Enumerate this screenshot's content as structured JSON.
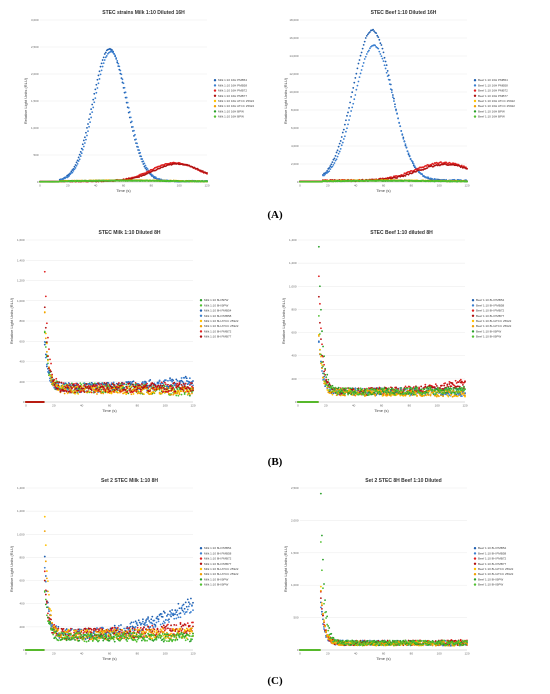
{
  "panel_labels": [
    "(A)",
    "(B)",
    "(C)"
  ],
  "chart_data": [
    {
      "type": "scatter",
      "title": "STEC strains Milk 1:10 Diluted 16H",
      "xlabel": "Time (s)",
      "ylabel": "Relative Light Units (RLU)",
      "xlim": [
        0,
        120
      ],
      "ylim": [
        0,
        3000
      ],
      "xticks": [
        "0",
        "20",
        "40",
        "60",
        "80",
        "100",
        "120"
      ],
      "yticks": [
        "0",
        "500",
        "1,000",
        "1,500",
        "2,000",
        "2,500",
        "3,000"
      ],
      "legend_position": "right",
      "series": [
        {
          "name": "Milk 1:10 16H PMB54",
          "color": "#1f5fb0",
          "peak_x": 50,
          "peak_y": 2450,
          "width": 12,
          "onset": 14,
          "base": 30
        },
        {
          "name": "Milk 1:10 16H PMB58",
          "color": "#3a7fd0",
          "peak_x": 51,
          "peak_y": 2400,
          "width": 12,
          "onset": 14,
          "base": 30
        },
        {
          "name": "Milk 1:10 16H PMB72",
          "color": "#e02020",
          "peak_x": 97,
          "peak_y": 340,
          "width": 17,
          "onset": 14,
          "base": 30
        },
        {
          "name": "Milk 1:10 16H PMB77",
          "color": "#b01010",
          "peak_x": 99,
          "peak_y": 320,
          "width": 17,
          "onset": 14,
          "base": 30
        },
        {
          "name": "Milk 1:10 16H ATCC 25922",
          "color": "#ffc000",
          "peak_x": 60,
          "peak_y": 20,
          "width": 30,
          "onset": 14,
          "base": 20
        },
        {
          "name": "Milk 1:10 16H ATCC 25922",
          "color": "#f0a000",
          "peak_x": 60,
          "peak_y": 20,
          "width": 30,
          "onset": 14,
          "base": 20
        },
        {
          "name": "Milk 1:10 16H BPW",
          "color": "#2aa02a",
          "peak_x": 60,
          "peak_y": 15,
          "width": 30,
          "onset": 14,
          "base": 20
        },
        {
          "name": "Milk 1:10 16H BPW",
          "color": "#50c030",
          "peak_x": 60,
          "peak_y": 15,
          "width": 30,
          "onset": 14,
          "base": 20
        }
      ]
    },
    {
      "type": "scatter",
      "title": "STEC Beef 1:10 Diluted 16H",
      "xlabel": "Time (s)",
      "ylabel": "Relative Light Units (RLU)",
      "xlim": [
        0,
        120
      ],
      "ylim": [
        0,
        18000
      ],
      "xticks": [
        "0",
        "20",
        "40",
        "60",
        "80",
        "100",
        "120"
      ],
      "yticks": [
        "0",
        "2,000",
        "4,000",
        "6,000",
        "8,000",
        "10,000",
        "12,000",
        "14,000",
        "16,000",
        "18,000"
      ],
      "legend_position": "right",
      "series": [
        {
          "name": "Beef 1:10 16H PMB54",
          "color": "#1f5fb0",
          "peak_x": 52,
          "peak_y": 16700,
          "width": 14,
          "onset": 16,
          "base": 300
        },
        {
          "name": "Beef 1:10 16H PMB58",
          "color": "#3a7fd0",
          "peak_x": 53,
          "peak_y": 15000,
          "width": 14,
          "onset": 16,
          "base": 300
        },
        {
          "name": "Beef 1:10 16H PMB72",
          "color": "#e02020",
          "peak_x": 103,
          "peak_y": 2000,
          "width": 20,
          "onset": 16,
          "base": 300
        },
        {
          "name": "Beef 1:10 16H PMB77",
          "color": "#b01010",
          "peak_x": 105,
          "peak_y": 1800,
          "width": 20,
          "onset": 16,
          "base": 300
        },
        {
          "name": "Beef 1:10 16H ATCC 25922",
          "color": "#ffc000",
          "peak_x": 60,
          "peak_y": 100,
          "width": 30,
          "onset": 16,
          "base": 150
        },
        {
          "name": "Beef 1:10 16H ATCC 25922",
          "color": "#f0a000",
          "peak_x": 60,
          "peak_y": 100,
          "width": 30,
          "onset": 16,
          "base": 150
        },
        {
          "name": "Beef 1:10 16H BPW",
          "color": "#2aa02a",
          "peak_x": 60,
          "peak_y": 80,
          "width": 30,
          "onset": 16,
          "base": 120
        },
        {
          "name": "Beef 1:10 16H BPW",
          "color": "#50c030",
          "peak_x": 60,
          "peak_y": 80,
          "width": 30,
          "onset": 16,
          "base": 120
        }
      ]
    },
    {
      "type": "scatter",
      "title": "STEC Milk 1:10 Diluted 8H",
      "xlabel": "Time (s)",
      "ylabel": "Relative Light Units (RLU)",
      "xlim": [
        0,
        120
      ],
      "ylim": [
        0,
        1600
      ],
      "xticks": [
        "0",
        "20",
        "40",
        "60",
        "80",
        "100",
        "120"
      ],
      "yticks": [
        "0",
        "200",
        "400",
        "600",
        "800",
        "1,000",
        "1,200",
        "1,400",
        "1,600"
      ],
      "legend_position": "right",
      "series": [
        {
          "name": "Milk 1:10 8H BPW",
          "color": "#2aa02a",
          "spike": 700,
          "floor": 140,
          "tail": 100,
          "onset": 13
        },
        {
          "name": "Milk 1:10 8H BPW",
          "color": "#50c030",
          "spike": 650,
          "floor": 140,
          "tail": 100,
          "onset": 13
        },
        {
          "name": "Milk 1:10 8H PMB54",
          "color": "#1f5fb0",
          "spike": 550,
          "floor": 140,
          "tail": 220,
          "onset": 13
        },
        {
          "name": "Milk 1:10 8H PMB58",
          "color": "#3a7fd0",
          "spike": 520,
          "floor": 140,
          "tail": 200,
          "onset": 13
        },
        {
          "name": "Milk 1:10 8H ATCC 25922",
          "color": "#ffc000",
          "spike": 960,
          "floor": 120,
          "tail": 110,
          "onset": 13
        },
        {
          "name": "Milk 1:10 8H ATCC 25922",
          "color": "#f0a000",
          "spike": 900,
          "floor": 120,
          "tail": 110,
          "onset": 13
        },
        {
          "name": "Milk 1:10 8H PMB72",
          "color": "#e02020",
          "spike": 1420,
          "floor": 140,
          "tail": 150,
          "onset": 13
        },
        {
          "name": "Milk 1:10 8H PMB77",
          "color": "#b01010",
          "spike": 930,
          "floor": 140,
          "tail": 150,
          "onset": 13
        }
      ]
    },
    {
      "type": "scatter",
      "title": "STEC Beef 1:10 diluted 8H",
      "xlabel": "Time (s)",
      "ylabel": "Relative Light Units (RLU)",
      "xlim": [
        0,
        120
      ],
      "ylim": [
        0,
        1400
      ],
      "xticks": [
        "0",
        "20",
        "40",
        "60",
        "80",
        "100",
        "120"
      ],
      "yticks": [
        "0",
        "200",
        "400",
        "600",
        "800",
        "1,000",
        "1,200",
        "1,400"
      ],
      "legend_position": "right",
      "series": [
        {
          "name": "Beef 1:10 8H PMB54",
          "color": "#1f5fb0",
          "spike": 460,
          "floor": 90,
          "tail": 90,
          "onset": 15
        },
        {
          "name": "Beef 1:10 8H PMB58",
          "color": "#3a7fd0",
          "spike": 420,
          "floor": 90,
          "tail": 80,
          "onset": 15
        },
        {
          "name": "Beef 1:10 8H PMB72",
          "color": "#e02020",
          "spike": 1020,
          "floor": 90,
          "tail": 170,
          "onset": 15
        },
        {
          "name": "Beef 1:10 8H PMB77",
          "color": "#b01010",
          "spike": 810,
          "floor": 90,
          "tail": 150,
          "onset": 15
        },
        {
          "name": "Beef 1:10 8H ATCC 25922",
          "color": "#ffc000",
          "spike": 520,
          "floor": 80,
          "tail": 70,
          "onset": 15
        },
        {
          "name": "Beef 1:10 8H ATCC 25922",
          "color": "#f0a000",
          "spike": 480,
          "floor": 80,
          "tail": 70,
          "onset": 15
        },
        {
          "name": "Beef 1:10 8H BPW",
          "color": "#2aa02a",
          "spike": 1270,
          "floor": 90,
          "tail": 110,
          "onset": 15
        },
        {
          "name": "Beef 1:10 8H BPW",
          "color": "#50c030",
          "spike": 640,
          "floor": 90,
          "tail": 100,
          "onset": 15
        }
      ]
    },
    {
      "type": "scatter",
      "title": "Set 2 STEC Milk 1:10 8H",
      "xlabel": "Time (s)",
      "ylabel": "Relative Light Units (RLU)",
      "xlim": [
        0,
        120
      ],
      "ylim": [
        0,
        1400
      ],
      "xticks": [
        "0",
        "20",
        "40",
        "60",
        "80",
        "100",
        "120"
      ],
      "yticks": [
        "0",
        "200",
        "400",
        "600",
        "800",
        "1,000",
        "1,200",
        "1,400"
      ],
      "legend_position": "right",
      "series": [
        {
          "name": "Milk 1:10 8H PMB54",
          "color": "#1f5fb0",
          "spike": 760,
          "floor": 140,
          "tail": 420,
          "onset": 13
        },
        {
          "name": "Milk 1:10 8H PMB58",
          "color": "#3a7fd0",
          "spike": 700,
          "floor": 140,
          "tail": 380,
          "onset": 13
        },
        {
          "name": "Milk 1:10 8H PMB72",
          "color": "#e02020",
          "spike": 600,
          "floor": 140,
          "tail": 200,
          "onset": 13
        },
        {
          "name": "Milk 1:10 8H PMB77",
          "color": "#b01010",
          "spike": 560,
          "floor": 140,
          "tail": 190,
          "onset": 13
        },
        {
          "name": "Milk 1:10 8H ATCC 25922",
          "color": "#ffc000",
          "spike": 1300,
          "floor": 130,
          "tail": 150,
          "onset": 13
        },
        {
          "name": "Milk 1:10 8H ATCC 25922",
          "color": "#f0a000",
          "spike": 1090,
          "floor": 130,
          "tail": 150,
          "onset": 13
        },
        {
          "name": "Milk 1:10 8H BPW",
          "color": "#2aa02a",
          "spike": 520,
          "floor": 110,
          "tail": 110,
          "onset": 13
        },
        {
          "name": "Milk 1:10 8H BPW",
          "color": "#50c030",
          "spike": 480,
          "floor": 110,
          "tail": 110,
          "onset": 13
        }
      ]
    },
    {
      "type": "scatter",
      "title": "Set 2 STEC 8H Beef 1:10 Diluted",
      "xlabel": "Time (s)",
      "ylabel": "Relative Light Units (RLU)",
      "xlim": [
        0,
        120
      ],
      "ylim": [
        0,
        2500
      ],
      "xticks": [
        "0",
        "20",
        "40",
        "60",
        "80",
        "100",
        "120"
      ],
      "yticks": [
        "0",
        "500",
        "1,000",
        "1,500",
        "2,000",
        "2,500"
      ],
      "legend_position": "right",
      "series": [
        {
          "name": "Beef 1:10 8H PMB54",
          "color": "#1f5fb0",
          "spike": 600,
          "floor": 110,
          "tail": 100,
          "onset": 15
        },
        {
          "name": "Beef 1:10 8H PMB58",
          "color": "#3a7fd0",
          "spike": 560,
          "floor": 110,
          "tail": 100,
          "onset": 15
        },
        {
          "name": "Beef 1:10 8H PMB72",
          "color": "#e02020",
          "spike": 760,
          "floor": 110,
          "tail": 120,
          "onset": 15
        },
        {
          "name": "Beef 1:10 8H PMB77",
          "color": "#b01010",
          "spike": 700,
          "floor": 110,
          "tail": 110,
          "onset": 15
        },
        {
          "name": "Beef 1:10 8H ATCC 25922",
          "color": "#ffc000",
          "spike": 850,
          "floor": 100,
          "tail": 100,
          "onset": 15
        },
        {
          "name": "Beef 1:10 8H ATCC 25922",
          "color": "#f0a000",
          "spike": 820,
          "floor": 100,
          "tail": 100,
          "onset": 15
        },
        {
          "name": "Beef 1:10 8H BPW",
          "color": "#2aa02a",
          "spike": 2270,
          "floor": 110,
          "tail": 110,
          "onset": 15
        },
        {
          "name": "Beef 1:10 8H BPW",
          "color": "#50c030",
          "spike": 1560,
          "floor": 110,
          "tail": 110,
          "onset": 15
        }
      ]
    }
  ]
}
